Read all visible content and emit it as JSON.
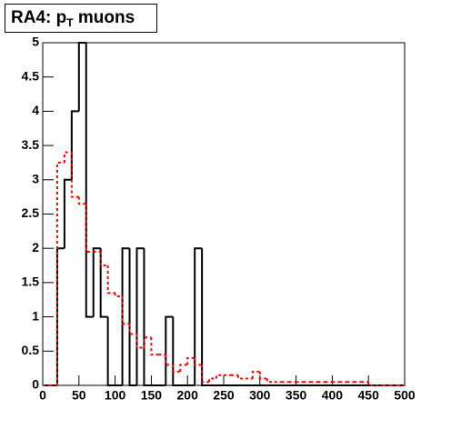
{
  "chart_data": {
    "type": "histogram",
    "title": [
      "RA4: p",
      "T",
      " muons"
    ],
    "bins": [
      0,
      10,
      20,
      30,
      40,
      50,
      60,
      70,
      80,
      90,
      100,
      110,
      120,
      130,
      140,
      150,
      160,
      170,
      180,
      190,
      200,
      210,
      220,
      230,
      240,
      250,
      260,
      270,
      280,
      290,
      300,
      310,
      320,
      330,
      340,
      350,
      360,
      370,
      380,
      390,
      400,
      410,
      420,
      430,
      440,
      450,
      460,
      470,
      480,
      490,
      500
    ],
    "series": [
      {
        "color": "#000000",
        "style": "solid",
        "values": [
          0,
          0,
          2,
          3,
          4,
          5,
          1,
          2,
          1,
          0,
          0,
          2,
          0,
          2,
          0,
          0,
          0,
          1,
          0,
          0,
          0,
          2,
          0,
          0,
          0,
          0,
          0,
          0,
          0,
          0,
          0,
          0,
          0,
          0,
          0,
          0,
          0,
          0,
          0,
          0,
          0,
          0,
          0,
          0,
          0,
          0,
          0,
          0,
          0,
          0
        ]
      },
      {
        "color": "#ff0000",
        "style": "dashed",
        "values": [
          0,
          0,
          3.25,
          3.4,
          2.75,
          2.65,
          1.95,
          1.95,
          1.75,
          1.35,
          1.3,
          0.9,
          0.75,
          0.55,
          0.7,
          0.45,
          0.45,
          0.3,
          0.2,
          0.3,
          0.4,
          0.3,
          0.05,
          0.1,
          0.15,
          0.15,
          0.15,
          0.1,
          0.1,
          0.2,
          0.1,
          0.05,
          0.05,
          0.05,
          0.05,
          0.05,
          0.05,
          0.05,
          0.05,
          0.05,
          0.05,
          0.05,
          0.05,
          0.05,
          0.05,
          0,
          0,
          0,
          0,
          0
        ]
      }
    ],
    "xlim": [
      0,
      500
    ],
    "xticks": [
      0,
      50,
      100,
      150,
      200,
      250,
      300,
      350,
      400,
      450,
      500
    ],
    "ylim": [
      0,
      5
    ],
    "yticks": [
      0,
      0.5,
      1,
      1.5,
      2,
      2.5,
      3,
      3.5,
      4,
      4.5,
      5
    ],
    "grid": false
  }
}
